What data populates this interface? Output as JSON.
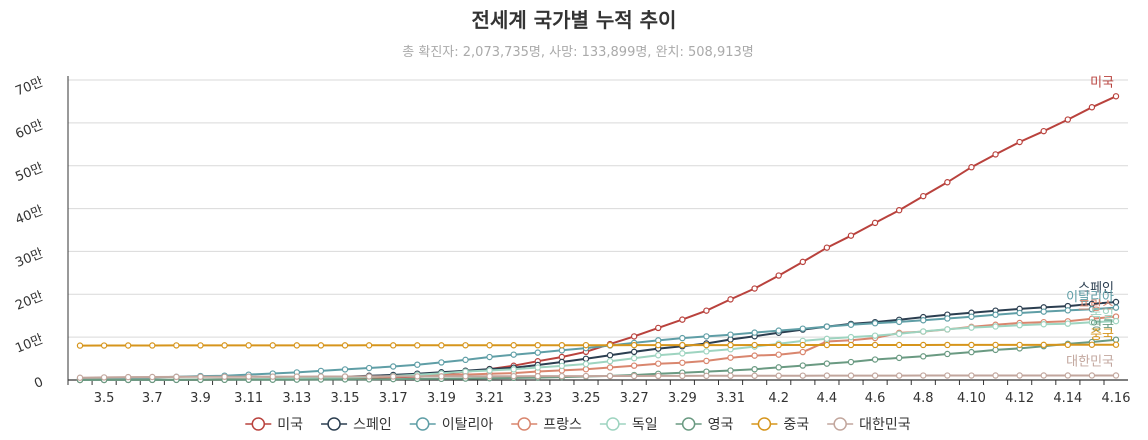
{
  "chart_data": {
    "type": "line",
    "title": "전세계 국가별 누적 추이",
    "subtitle": "총 확진자: 2,073,735명, 사망: 133,899명, 완치: 508,913명",
    "xlabel": "",
    "ylabel": "",
    "ylim": [
      0,
      700000
    ],
    "yticks": [
      {
        "value": 0,
        "label": "0"
      },
      {
        "value": 100000,
        "label": "10만"
      },
      {
        "value": 200000,
        "label": "20만"
      },
      {
        "value": 300000,
        "label": "30만"
      },
      {
        "value": 400000,
        "label": "40만"
      },
      {
        "value": 500000,
        "label": "50만"
      },
      {
        "value": 600000,
        "label": "60만"
      },
      {
        "value": 700000,
        "label": "70만"
      }
    ],
    "grid": true,
    "legend_position": "bottom",
    "categories": [
      "3.4",
      "3.5",
      "3.6",
      "3.7",
      "3.8",
      "3.9",
      "3.10",
      "3.11",
      "3.12",
      "3.13",
      "3.14",
      "3.15",
      "3.16",
      "3.17",
      "3.18",
      "3.19",
      "3.20",
      "3.21",
      "3.22",
      "3.23",
      "3.24",
      "3.25",
      "3.26",
      "3.27",
      "3.28",
      "3.29",
      "3.30",
      "3.31",
      "4.1",
      "4.2",
      "4.3",
      "4.4",
      "4.5",
      "4.6",
      "4.7",
      "4.8",
      "4.9",
      "4.10",
      "4.11",
      "4.12",
      "4.13",
      "4.14",
      "4.15",
      "4.16"
    ],
    "xtick_labels": [
      "3.5",
      "3.7",
      "3.9",
      "3.11",
      "3.13",
      "3.15",
      "3.17",
      "3.19",
      "3.21",
      "3.23",
      "3.25",
      "3.27",
      "3.29",
      "3.31",
      "4.2",
      "4.4",
      "4.6",
      "4.8",
      "4.10",
      "4.12",
      "4.14",
      "4.16"
    ],
    "series": [
      {
        "name": "미국",
        "color": "#b9423d",
        "values": [
          150,
          220,
          320,
          450,
          600,
          760,
          1000,
          1300,
          1700,
          2200,
          2900,
          3500,
          4600,
          6400,
          7700,
          13600,
          19100,
          25500,
          33300,
          43800,
          53700,
          65800,
          83800,
          101700,
          121500,
          140900,
          161800,
          188100,
          213400,
          243700,
          275600,
          308800,
          336800,
          366600,
          396200,
          429000,
          461400,
          496500,
          526400,
          555300,
          580600,
          607700,
          636400,
          662000
        ]
      },
      {
        "name": "스페인",
        "color": "#2b3e50",
        "values": [
          200,
          260,
          400,
          500,
          670,
          1100,
          1700,
          2300,
          3100,
          5200,
          6400,
          7800,
          9900,
          11800,
          14800,
          18100,
          21600,
          25400,
          28800,
          35100,
          42100,
          49500,
          57800,
          65700,
          73200,
          78800,
          85200,
          94400,
          102100,
          110200,
          117700,
          124700,
          130800,
          135000,
          140500,
          146700,
          152400,
          157000,
          161800,
          166000,
          169500,
          172500,
          177600,
          182000
        ]
      },
      {
        "name": "이탈리아",
        "color": "#5f9ea6",
        "values": [
          3100,
          3900,
          4600,
          5900,
          7400,
          9200,
          10100,
          12500,
          15100,
          17700,
          21200,
          24700,
          27900,
          31500,
          35700,
          41000,
          47000,
          53600,
          59100,
          63900,
          69200,
          74400,
          80600,
          86500,
          92500,
          97700,
          101700,
          105800,
          110600,
          115200,
          119800,
          124600,
          128900,
          132500,
          135600,
          139400,
          143600,
          147600,
          152300,
          156400,
          159500,
          162500,
          165200,
          168900
        ]
      },
      {
        "name": "프랑스",
        "color": "#d9866e",
        "values": [
          280,
          380,
          650,
          950,
          1200,
          1400,
          1800,
          2300,
          2900,
          3700,
          4500,
          5400,
          6600,
          7700,
          9100,
          10900,
          12600,
          14500,
          16000,
          19900,
          22300,
          25200,
          29200,
          33400,
          38100,
          40200,
          44500,
          52100,
          56900,
          59100,
          65200,
          89900,
          92800,
          98000,
          110000,
          113000,
          118000,
          124000,
          129000,
          133000,
          135000,
          137000,
          143000,
          148000
        ]
      },
      {
        "name": "독일",
        "color": "#9ed4c0",
        "values": [
          260,
          480,
          670,
          800,
          1000,
          1200,
          1500,
          1900,
          2700,
          3700,
          4600,
          5800,
          7300,
          9300,
          12300,
          15300,
          19800,
          22200,
          24900,
          29100,
          32900,
          37300,
          43900,
          50900,
          57700,
          62100,
          66900,
          71800,
          77900,
          84800,
          91200,
          96100,
          100100,
          103400,
          107700,
          113300,
          118200,
          122200,
          124900,
          127900,
          130100,
          131400,
          134800,
          137400
        ]
      },
      {
        "name": "영국",
        "color": "#6a9a82",
        "values": [
          90,
          120,
          160,
          210,
          270,
          320,
          380,
          460,
          590,
          800,
          1100,
          1400,
          1500,
          1950,
          2600,
          2700,
          3300,
          4000,
          5000,
          5700,
          6700,
          8100,
          9500,
          11600,
          14500,
          17100,
          19500,
          22100,
          25200,
          29500,
          33700,
          38200,
          41900,
          47800,
          51600,
          55200,
          60700,
          65100,
          70300,
          73800,
          78900,
          84300,
          88600,
          93900
        ]
      },
      {
        "name": "중국",
        "color": "#d6951c",
        "values": [
          80300,
          80400,
          80500,
          80600,
          80700,
          80700,
          80800,
          80800,
          80800,
          80800,
          80800,
          80800,
          80900,
          80900,
          80900,
          80900,
          81000,
          81100,
          81100,
          81200,
          81200,
          81300,
          81300,
          81400,
          81400,
          81500,
          81500,
          81500,
          81600,
          81600,
          81600,
          81600,
          81700,
          81700,
          81700,
          81700,
          81800,
          81800,
          81900,
          81900,
          82000,
          82100,
          82200,
          82300
        ]
      },
      {
        "name": "대한민국",
        "color": "#c2a69d",
        "values": [
          5300,
          6000,
          6800,
          7100,
          7300,
          7500,
          7500,
          7800,
          7900,
          8000,
          8100,
          8200,
          8300,
          8300,
          8400,
          8600,
          8700,
          8800,
          8900,
          9000,
          9100,
          9200,
          9300,
          9400,
          9500,
          9600,
          9700,
          9800,
          9900,
          10000,
          10100,
          10200,
          10200,
          10300,
          10300,
          10400,
          10400,
          10400,
          10500,
          10500,
          10500,
          10600,
          10600,
          10600
        ]
      }
    ]
  }
}
